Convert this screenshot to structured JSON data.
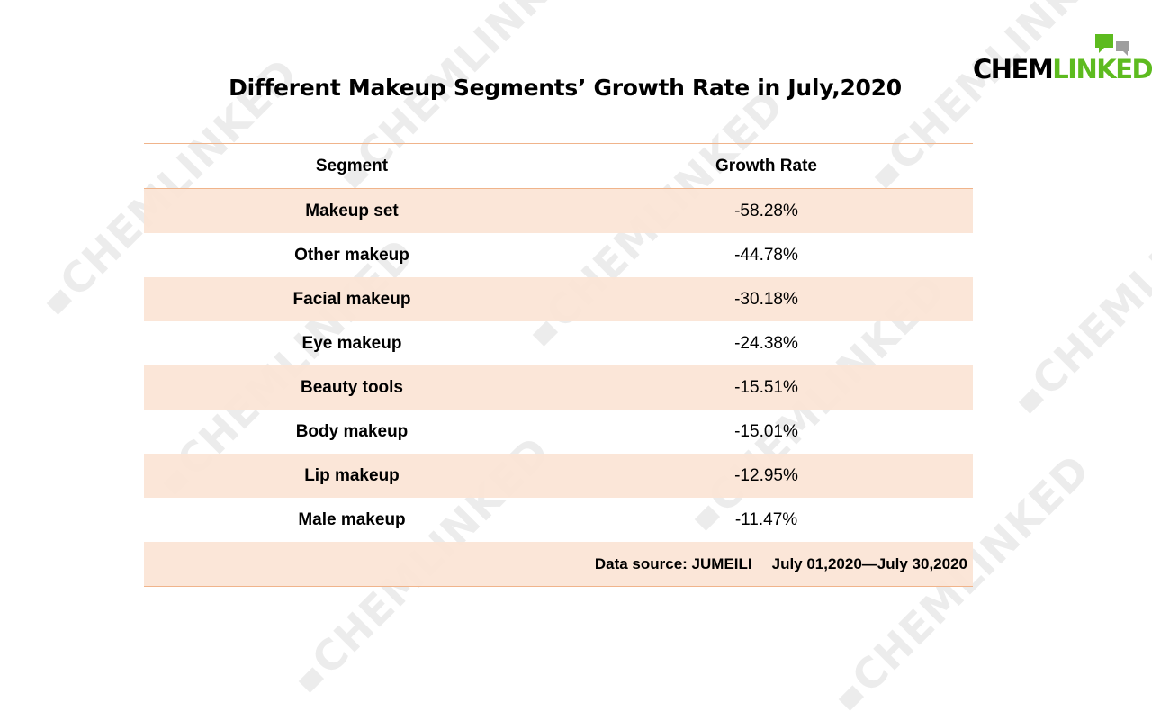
{
  "logo": {
    "part1": "CHEM",
    "part2": "LINKED",
    "brand_color": "#5dbb1f"
  },
  "watermark": {
    "text": "CHEMLINKED"
  },
  "title": "Different Makeup Segments’ Growth Rate in July,2020",
  "table": {
    "header": {
      "segment": "Segment",
      "growth_rate": "Growth Rate"
    },
    "rows": [
      {
        "segment": "Makeup set",
        "growth_rate": "-58.28%"
      },
      {
        "segment": "Other makeup",
        "growth_rate": "-44.78%"
      },
      {
        "segment": "Facial makeup",
        "growth_rate": "-30.18%"
      },
      {
        "segment": "Eye makeup",
        "growth_rate": "-24.38%"
      },
      {
        "segment": "Beauty tools",
        "growth_rate": "-15.51%"
      },
      {
        "segment": "Body makeup",
        "growth_rate": "-15.01%"
      },
      {
        "segment": "Lip makeup",
        "growth_rate": "-12.95%"
      },
      {
        "segment": "Male makeup",
        "growth_rate": "-11.47%"
      }
    ],
    "footer": {
      "source": "Data source: JUMEILI",
      "period": "July 01,2020—July 30,2020"
    },
    "shade_color": "#fbe4d5",
    "rule_color": "#f0b48b"
  }
}
